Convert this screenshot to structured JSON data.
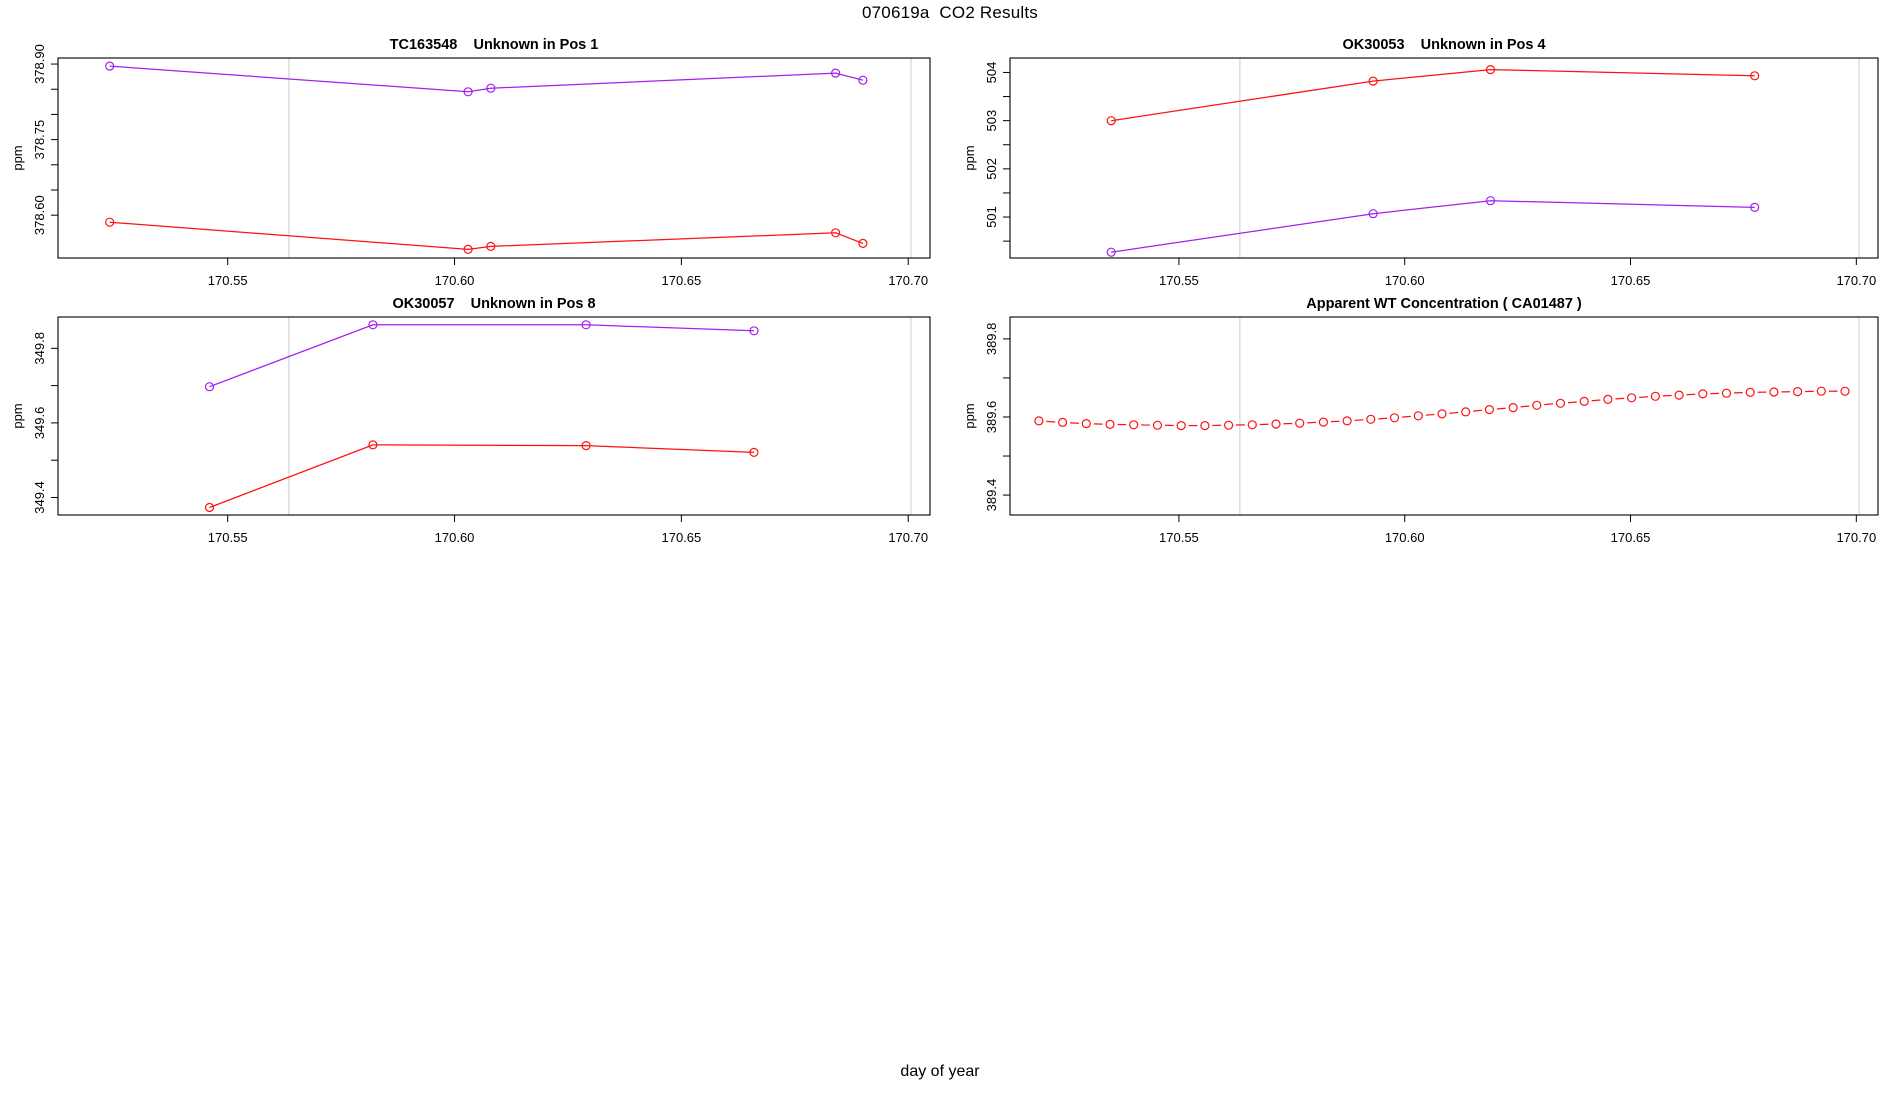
{
  "header": {
    "title": "070619a  CO2 Results"
  },
  "figure": {
    "xlabel": "day of year",
    "background": "#ffffff",
    "colors": {
      "red": "#ff1111",
      "purple": "#a020f0",
      "vline": "#d4d4d4",
      "frame": "#000000"
    }
  },
  "chart_data": [
    {
      "type": "line",
      "panel": "top-left",
      "title": "TC163548    Unknown in Pos 1",
      "ylabel": "ppm",
      "xlim": [
        170.5126,
        170.7048
      ],
      "ylim": [
        378.515,
        378.912
      ],
      "xticks": [
        {
          "v": 170.55,
          "label": "170.55"
        },
        {
          "v": 170.6,
          "label": "170.60"
        },
        {
          "v": 170.65,
          "label": "170.65"
        },
        {
          "v": 170.7,
          "label": "170.70"
        }
      ],
      "yticks": [
        {
          "v": 378.6,
          "label": "378.60"
        },
        {
          "v": 378.65
        },
        {
          "v": 378.7
        },
        {
          "v": 378.75,
          "label": "378.75"
        },
        {
          "v": 378.8
        },
        {
          "v": 378.85
        },
        {
          "v": 378.9,
          "label": "378.90"
        }
      ],
      "vlines": [
        170.5635,
        170.7006
      ],
      "series": [
        {
          "name": "purple-series",
          "color": "#a020f0",
          "line": "solid",
          "marker": "circle",
          "x": [
            170.524,
            170.603,
            170.608,
            170.684,
            170.69
          ],
          "y": [
            378.896,
            378.845,
            378.852,
            378.882,
            378.868
          ]
        },
        {
          "name": "red-series",
          "color": "#ff1111",
          "line": "solid",
          "marker": "circle",
          "x": [
            170.524,
            170.603,
            170.608,
            170.684,
            170.69
          ],
          "y": [
            378.586,
            378.532,
            378.538,
            378.565,
            378.544
          ]
        }
      ]
    },
    {
      "type": "line",
      "panel": "top-right",
      "title": "OK30053    Unknown in Pos 4",
      "ylabel": "ppm",
      "xlim": [
        170.5126,
        170.7048
      ],
      "ylim": [
        500.15,
        504.3
      ],
      "xticks": [
        {
          "v": 170.55,
          "label": "170.55"
        },
        {
          "v": 170.6,
          "label": "170.60"
        },
        {
          "v": 170.65,
          "label": "170.65"
        },
        {
          "v": 170.7,
          "label": "170.70"
        }
      ],
      "yticks": [
        {
          "v": 500.5
        },
        {
          "v": 501,
          "label": "501"
        },
        {
          "v": 501.5
        },
        {
          "v": 502,
          "label": "502"
        },
        {
          "v": 502.5
        },
        {
          "v": 503,
          "label": "503"
        },
        {
          "v": 503.5
        },
        {
          "v": 504,
          "label": "504"
        }
      ],
      "vlines": [
        170.5635,
        170.7006
      ],
      "series": [
        {
          "name": "red-series",
          "color": "#ff1111",
          "line": "solid",
          "marker": "circle",
          "x": [
            170.535,
            170.593,
            170.619,
            170.6775
          ],
          "y": [
            503.0,
            503.82,
            504.06,
            503.93
          ]
        },
        {
          "name": "purple-series",
          "color": "#a020f0",
          "line": "solid",
          "marker": "circle",
          "x": [
            170.535,
            170.593,
            170.619,
            170.6775
          ],
          "y": [
            500.27,
            501.07,
            501.34,
            501.2
          ]
        }
      ]
    },
    {
      "type": "line",
      "panel": "bottom-left",
      "title": "OK30057    Unknown in Pos 8",
      "ylabel": "ppm",
      "xlim": [
        170.5126,
        170.7048
      ],
      "ylim": [
        349.353,
        349.884
      ],
      "xticks": [
        {
          "v": 170.55,
          "label": "170.55"
        },
        {
          "v": 170.6,
          "label": "170.60"
        },
        {
          "v": 170.65,
          "label": "170.65"
        },
        {
          "v": 170.7,
          "label": "170.70"
        }
      ],
      "yticks": [
        {
          "v": 349.4,
          "label": "349.4"
        },
        {
          "v": 349.5
        },
        {
          "v": 349.6,
          "label": "349.6"
        },
        {
          "v": 349.7
        },
        {
          "v": 349.8,
          "label": "349.8"
        }
      ],
      "vlines": [
        170.5635,
        170.7006
      ],
      "series": [
        {
          "name": "purple-series",
          "color": "#a020f0",
          "line": "solid",
          "marker": "circle",
          "x": [
            170.546,
            170.582,
            170.629,
            170.666
          ],
          "y": [
            349.697,
            349.863,
            349.863,
            349.847
          ]
        },
        {
          "name": "red-series",
          "color": "#ff1111",
          "line": "solid",
          "marker": "circle",
          "x": [
            170.546,
            170.582,
            170.629,
            170.666
          ],
          "y": [
            349.373,
            349.541,
            349.539,
            349.521
          ]
        }
      ]
    },
    {
      "type": "line",
      "panel": "bottom-right",
      "title": "Apparent WT Concentration ( CA01487 )",
      "ylabel": "ppm",
      "xlim": [
        170.5126,
        170.7048
      ],
      "ylim": [
        389.349,
        389.856
      ],
      "xticks": [
        {
          "v": 170.55,
          "label": "170.55"
        },
        {
          "v": 170.6,
          "label": "170.60"
        },
        {
          "v": 170.65,
          "label": "170.65"
        },
        {
          "v": 170.7,
          "label": "170.70"
        }
      ],
      "yticks": [
        {
          "v": 389.4,
          "label": "389.4"
        },
        {
          "v": 389.5
        },
        {
          "v": 389.6,
          "label": "389.6"
        },
        {
          "v": 389.7
        },
        {
          "v": 389.8,
          "label": "389.8"
        }
      ],
      "vlines": [
        170.5635,
        170.7006
      ],
      "series": [
        {
          "name": "red-dashed-series",
          "color": "#ff1111",
          "line": "dash-segments",
          "marker": "circle",
          "x": [
            170.519,
            170.52425,
            170.5295,
            170.53475,
            170.54,
            170.54525,
            170.5505,
            170.55575,
            170.561,
            170.56625,
            170.5715,
            170.57675,
            170.582,
            170.58725,
            170.5925,
            170.59775,
            170.603,
            170.60825,
            170.6135,
            170.61875,
            170.624,
            170.62925,
            170.6345,
            170.63975,
            170.645,
            170.65025,
            170.6555,
            170.66075,
            170.666,
            170.67125,
            170.6765,
            170.68175,
            170.687,
            170.69225,
            170.6975
          ],
          "y": [
            389.59,
            389.586,
            389.583,
            389.581,
            389.58,
            389.579,
            389.578,
            389.578,
            389.579,
            389.58,
            389.582,
            389.584,
            389.587,
            389.59,
            389.594,
            389.598,
            389.603,
            389.608,
            389.613,
            389.619,
            389.624,
            389.63,
            389.635,
            389.64,
            389.645,
            389.649,
            389.653,
            389.656,
            389.659,
            389.661,
            389.663,
            389.664,
            389.665,
            389.666,
            389.666
          ]
        }
      ]
    }
  ]
}
